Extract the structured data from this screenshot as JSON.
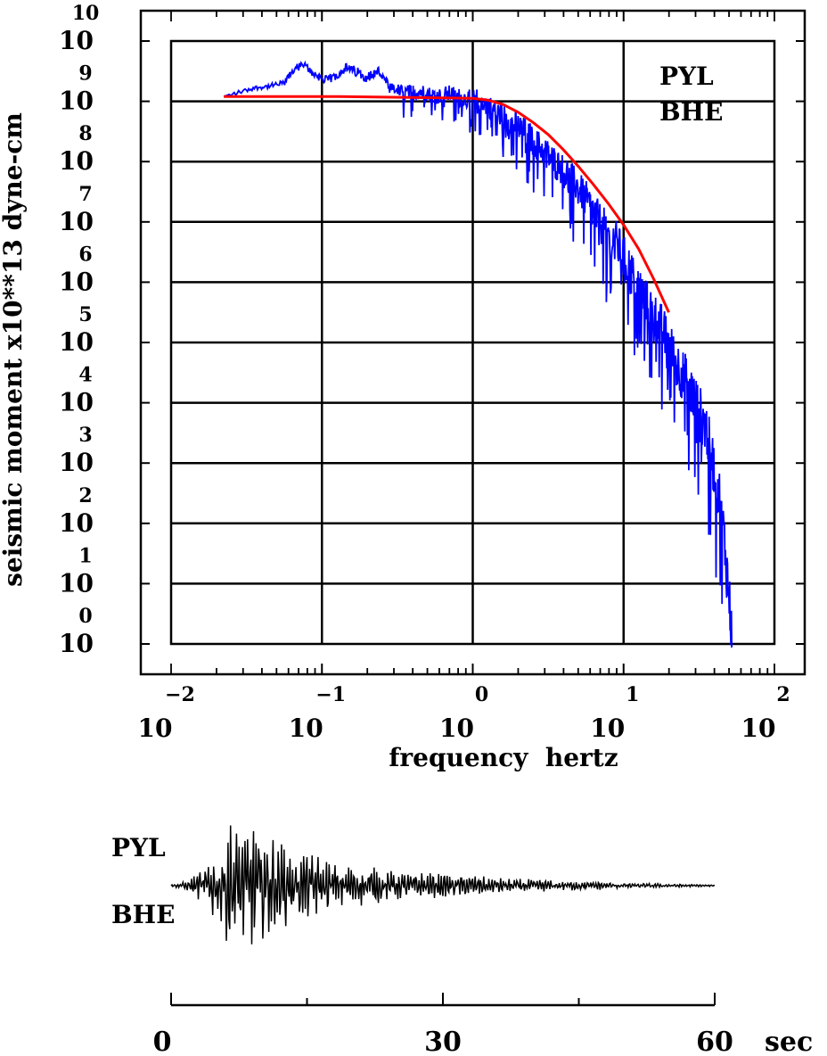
{
  "chart_data": [
    {
      "type": "line",
      "title": "",
      "ylabel": "seismic moment x10**13 dyne-cm",
      "xlabel": "frequency  hertz",
      "x_scale": "log",
      "y_scale": "log",
      "xlim": [
        -2.2,
        2.0
      ],
      "ylim": [
        -0.05,
        10.0
      ],
      "x_ticks": [
        {
          "base": "10",
          "exp": "−2",
          "v": -2
        },
        {
          "base": "10",
          "exp": "−1",
          "v": -1
        },
        {
          "base": "10",
          "exp": "0",
          "v": 0
        },
        {
          "base": "10",
          "exp": "1",
          "v": 1
        },
        {
          "base": "10",
          "exp": "2",
          "v": 2
        }
      ],
      "y_ticks": [
        {
          "base": "10",
          "exp": "0",
          "v": 0
        },
        {
          "base": "10",
          "exp": "1",
          "v": 1
        },
        {
          "base": "10",
          "exp": "2",
          "v": 2
        },
        {
          "base": "10",
          "exp": "3",
          "v": 3
        },
        {
          "base": "10",
          "exp": "4",
          "v": 4
        },
        {
          "base": "10",
          "exp": "5",
          "v": 5
        },
        {
          "base": "10",
          "exp": "6",
          "v": 6
        },
        {
          "base": "10",
          "exp": "7",
          "v": 7
        },
        {
          "base": "10",
          "exp": "8",
          "v": 8
        },
        {
          "base": "10",
          "exp": "9",
          "v": 9
        },
        {
          "base": "10",
          "exp": "10",
          "v": 10
        }
      ],
      "grid": true,
      "annotations": {
        "station": "PYL",
        "channel": "BHE"
      },
      "series": [
        {
          "style": "spectrum",
          "color": "#0000ff",
          "x": [
            -1.65,
            -1.55,
            -1.45,
            -1.35,
            -1.25,
            -1.18,
            -1.12,
            -1.05,
            -0.98,
            -0.92,
            -0.85,
            -0.78,
            -0.7,
            -0.62,
            -0.55,
            -0.45,
            -0.35,
            -0.25,
            -0.15,
            -0.05,
            0.05,
            0.15,
            0.25,
            0.35,
            0.45,
            0.55,
            0.65,
            0.75,
            0.85,
            0.95,
            1.05,
            1.15,
            1.25,
            1.35,
            1.45,
            1.55,
            1.65,
            1.7,
            1.72
          ],
          "y": [
            9.07,
            9.15,
            9.22,
            9.25,
            9.3,
            9.55,
            9.6,
            9.45,
            9.35,
            9.4,
            9.55,
            9.5,
            9.4,
            9.5,
            9.2,
            9.15,
            9.18,
            9.1,
            9.15,
            9.05,
            9.05,
            8.85,
            8.7,
            8.5,
            8.25,
            8.0,
            7.75,
            7.4,
            7.0,
            6.7,
            6.2,
            5.7,
            5.3,
            4.7,
            4.25,
            3.6,
            2.3,
            0.8,
            0.1
          ],
          "spread": [
            0.12,
            0.1,
            0.1,
            0.12,
            0.15,
            0.18,
            0.2,
            0.2,
            0.2,
            0.22,
            0.25,
            0.25,
            0.25,
            0.25,
            0.3,
            0.3,
            0.3,
            0.3,
            0.3,
            0.35,
            0.4,
            0.45,
            0.5,
            0.55,
            0.6,
            0.6,
            0.65,
            0.7,
            0.75,
            0.8,
            0.85,
            0.9,
            0.9,
            0.95,
            1.0,
            1.0,
            1.1,
            1.1,
            1.0
          ]
        },
        {
          "style": "fit",
          "color": "#ff0000",
          "x": [
            -1.65,
            -1.5,
            -1.2,
            -0.9,
            -0.6,
            -0.3,
            0.0,
            0.1,
            0.2,
            0.3,
            0.4,
            0.5,
            0.6,
            0.7,
            0.8,
            0.9,
            1.0,
            1.1,
            1.2,
            1.3
          ],
          "y": [
            9.08,
            9.08,
            9.08,
            9.08,
            9.07,
            9.06,
            9.05,
            9.02,
            8.95,
            8.82,
            8.65,
            8.45,
            8.2,
            7.92,
            7.62,
            7.3,
            6.95,
            6.55,
            6.05,
            5.5
          ]
        }
      ]
    },
    {
      "type": "line",
      "title": "",
      "xlabel": "",
      "ylabel": "",
      "xlim": [
        0,
        60
      ],
      "x_ticks": [
        {
          "label": "0",
          "v": 0
        },
        {
          "label": "30",
          "v": 30
        },
        {
          "label": "60",
          "v": 60
        }
      ],
      "x_unit": "sec",
      "annotations": {
        "station": "PYL",
        "channel": "BHE"
      },
      "series": [
        {
          "style": "seismogram",
          "color": "#000000",
          "t": [
            0,
            2,
            4,
            5,
            6,
            6.5,
            7,
            8,
            9,
            10,
            11,
            12,
            13,
            14,
            15,
            17,
            19,
            21,
            23,
            25,
            27,
            30,
            33,
            36,
            39,
            42,
            45,
            48,
            51,
            54,
            57,
            60
          ],
          "amplitude": [
            0.01,
            0.08,
            0.35,
            0.6,
            0.9,
            1.0,
            0.95,
            0.85,
            0.9,
            0.85,
            0.75,
            0.65,
            0.6,
            0.55,
            0.5,
            0.42,
            0.35,
            0.3,
            0.25,
            0.22,
            0.2,
            0.17,
            0.15,
            0.12,
            0.1,
            0.08,
            0.07,
            0.06,
            0.04,
            0.03,
            0.02,
            0.01
          ]
        }
      ]
    }
  ]
}
